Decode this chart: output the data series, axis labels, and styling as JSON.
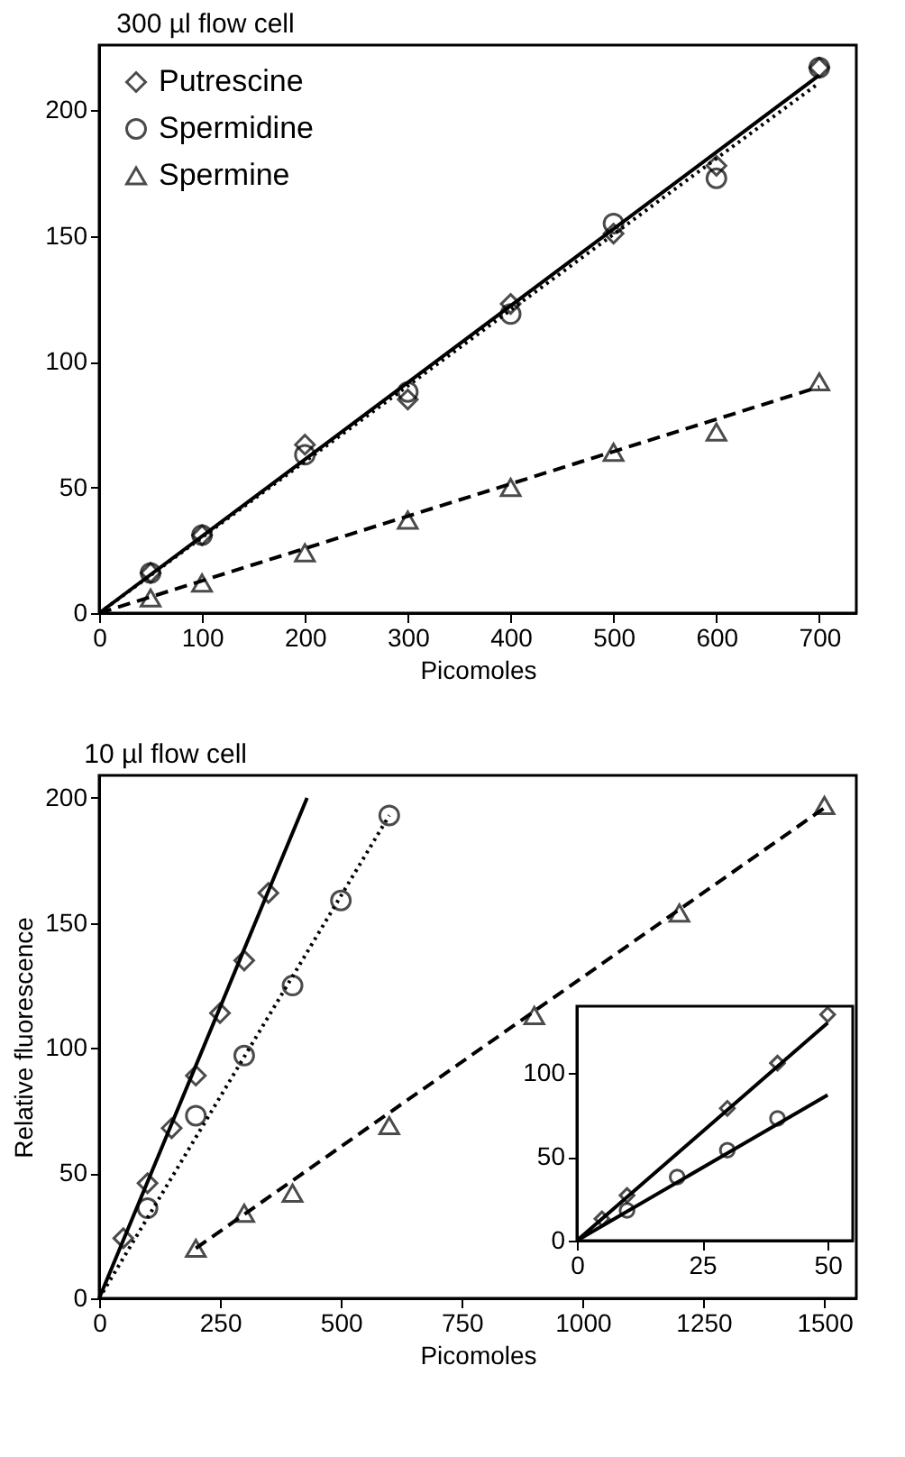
{
  "chart_data": [
    {
      "type": "scatter",
      "title": "300 µl flow cell",
      "xlabel": "Picomoles",
      "xlim": [
        0,
        736
      ],
      "ylim": [
        0,
        226
      ],
      "xticks": [
        0,
        100,
        200,
        300,
        400,
        500,
        600,
        700
      ],
      "yticks": [
        0,
        50,
        100,
        150,
        200
      ],
      "grid": false,
      "legend": "top left",
      "series": [
        {
          "name": "Putrescine",
          "type": "scatter",
          "marker": "diamond",
          "color": "#000000",
          "x": [
            50,
            100,
            200,
            300,
            400,
            500,
            600,
            700
          ],
          "values": [
            16,
            31,
            67,
            85,
            123,
            151,
            178,
            217
          ]
        },
        {
          "name": "Spermidine",
          "type": "scatter",
          "marker": "circle",
          "color": "#000000",
          "x": [
            50,
            100,
            200,
            300,
            400,
            500,
            600,
            700
          ],
          "values": [
            16,
            31,
            63,
            88,
            119,
            155,
            173,
            217
          ]
        },
        {
          "name": "Spermine",
          "type": "scatter",
          "marker": "triangle",
          "color": "#000000",
          "x": [
            50,
            100,
            200,
            300,
            400,
            500,
            600,
            700
          ],
          "values": [
            6,
            12,
            24,
            37,
            50,
            64,
            72,
            92
          ]
        },
        {
          "type": "line",
          "line_style": "solid",
          "marker": "none",
          "color": "#000000",
          "x": [
            0,
            700
          ],
          "values": [
            0,
            214
          ]
        },
        {
          "type": "line",
          "line_style": "dotted",
          "marker": "none",
          "color": "#000000",
          "x": [
            0,
            700
          ],
          "values": [
            0,
            211
          ]
        },
        {
          "type": "line",
          "line_style": "dashed",
          "marker": "none",
          "color": "#000000",
          "x": [
            0,
            700
          ],
          "values": [
            0,
            90
          ]
        }
      ]
    },
    {
      "type": "scatter",
      "title": "10 µl flow cell",
      "xlabel": "Picomoles",
      "ylabel": "Relative fluorescence",
      "xlim": [
        0,
        1566
      ],
      "ylim": [
        0,
        209
      ],
      "xticks": [
        0,
        250,
        500,
        750,
        1000,
        1250,
        1500
      ],
      "yticks": [
        0,
        50,
        100,
        150,
        200
      ],
      "grid": false,
      "legend": false,
      "series": [
        {
          "type": "scatter",
          "marker": "diamond",
          "color": "#000000",
          "x": [
            50,
            100,
            150,
            200,
            250,
            300,
            350
          ],
          "values": [
            24,
            46,
            68,
            89,
            114,
            135,
            162
          ]
        },
        {
          "type": "scatter",
          "marker": "circle",
          "color": "#000000",
          "x": [
            100,
            200,
            300,
            400,
            500,
            600
          ],
          "values": [
            36,
            73,
            97,
            125,
            159,
            193
          ]
        },
        {
          "type": "scatter",
          "marker": "triangle",
          "color": "#000000",
          "x": [
            200,
            300,
            400,
            600,
            900,
            1200,
            1500
          ],
          "values": [
            20,
            34,
            42,
            69,
            113,
            154,
            197
          ]
        },
        {
          "type": "line",
          "line_style": "solid",
          "marker": "none",
          "color": "#000000",
          "x": [
            0,
            430
          ],
          "values": [
            0,
            200
          ]
        },
        {
          "type": "line",
          "line_style": "dotted",
          "marker": "none",
          "color": "#000000",
          "x": [
            0,
            600
          ],
          "values": [
            0,
            193
          ]
        },
        {
          "type": "line",
          "line_style": "dashed",
          "marker": "none",
          "color": "#000000",
          "x": [
            200,
            1500
          ],
          "values": [
            20,
            196
          ]
        }
      ]
    },
    {
      "type": "scatter",
      "xlim": [
        0,
        55
      ],
      "ylim": [
        0,
        140
      ],
      "xticks": [
        0,
        25,
        50
      ],
      "yticks": [
        0,
        50,
        100
      ],
      "grid": false,
      "legend": false,
      "series": [
        {
          "type": "scatter",
          "marker": "diamond",
          "color": "#000000",
          "x": [
            5,
            10,
            30,
            40,
            50
          ],
          "values": [
            13,
            27,
            79,
            106,
            135
          ]
        },
        {
          "type": "scatter",
          "marker": "circle",
          "color": "#000000",
          "x": [
            10,
            20,
            30,
            40
          ],
          "values": [
            18,
            38,
            54,
            73
          ]
        },
        {
          "type": "line",
          "line_style": "solid",
          "marker": "none",
          "color": "#000000",
          "x": [
            0,
            50
          ],
          "values": [
            0,
            130
          ]
        },
        {
          "type": "line",
          "line_style": "solid",
          "marker": "none",
          "color": "#000000",
          "x": [
            0,
            50
          ],
          "values": [
            0,
            87
          ]
        }
      ]
    }
  ]
}
